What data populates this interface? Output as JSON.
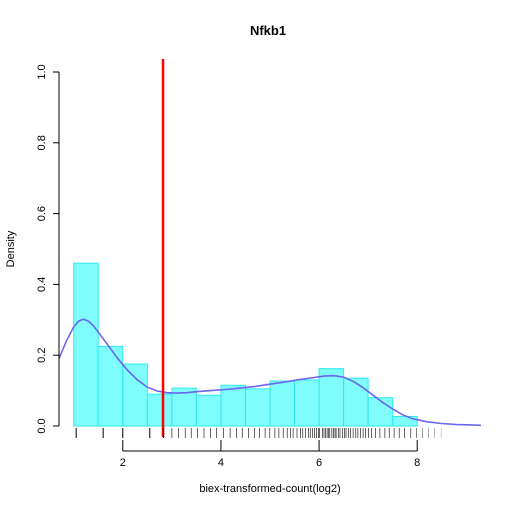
{
  "chart_data": {
    "type": "histogram",
    "title": "Nfkb1",
    "xlabel": "biex-transformed-count(log2)",
    "ylabel": "Density",
    "xlim": [
      0.7,
      9.3
    ],
    "ylim": [
      0,
      1.0
    ],
    "x_ticks": [
      2,
      4,
      6,
      8
    ],
    "y_ticks": [
      0.0,
      0.2,
      0.4,
      0.6,
      0.8,
      1.0
    ],
    "x_tick_labels": [
      "2",
      "4",
      "6",
      "8"
    ],
    "y_tick_labels": [
      "0.0",
      "0.2",
      "0.4",
      "0.6",
      "0.8",
      "1.0"
    ],
    "bins": [
      {
        "x0": 1.0,
        "x1": 1.5,
        "density": 0.46
      },
      {
        "x0": 1.5,
        "x1": 2.0,
        "density": 0.225
      },
      {
        "x0": 2.0,
        "x1": 2.5,
        "density": 0.175
      },
      {
        "x0": 2.5,
        "x1": 3.0,
        "density": 0.09
      },
      {
        "x0": 3.0,
        "x1": 3.5,
        "density": 0.107
      },
      {
        "x0": 3.5,
        "x1": 4.0,
        "density": 0.087
      },
      {
        "x0": 4.0,
        "x1": 4.5,
        "density": 0.115
      },
      {
        "x0": 4.5,
        "x1": 5.0,
        "density": 0.105
      },
      {
        "x0": 5.0,
        "x1": 5.5,
        "density": 0.127
      },
      {
        "x0": 5.5,
        "x1": 6.0,
        "density": 0.13
      },
      {
        "x0": 6.0,
        "x1": 6.5,
        "density": 0.162
      },
      {
        "x0": 6.5,
        "x1": 7.0,
        "density": 0.135
      },
      {
        "x0": 7.0,
        "x1": 7.5,
        "density": 0.08
      },
      {
        "x0": 7.5,
        "x1": 8.0,
        "density": 0.027
      }
    ],
    "density_curve": {
      "x": [
        0.7,
        0.85,
        1.0,
        1.1,
        1.2,
        1.3,
        1.4,
        1.5,
        1.7,
        1.9,
        2.1,
        2.3,
        2.5,
        2.7,
        2.9,
        3.1,
        3.3,
        3.5,
        3.8,
        4.1,
        4.4,
        4.7,
        5.0,
        5.3,
        5.6,
        5.9,
        6.1,
        6.3,
        6.5,
        6.7,
        6.9,
        7.1,
        7.3,
        7.5,
        7.7,
        7.9,
        8.2,
        8.5,
        8.8,
        9.1,
        9.3
      ],
      "y": [
        0.19,
        0.24,
        0.28,
        0.296,
        0.302,
        0.296,
        0.284,
        0.265,
        0.228,
        0.19,
        0.157,
        0.13,
        0.11,
        0.099,
        0.094,
        0.093,
        0.094,
        0.097,
        0.1,
        0.103,
        0.107,
        0.112,
        0.118,
        0.124,
        0.131,
        0.137,
        0.141,
        0.142,
        0.138,
        0.126,
        0.108,
        0.087,
        0.066,
        0.048,
        0.032,
        0.021,
        0.012,
        0.007,
        0.004,
        0.003,
        0.002
      ]
    },
    "threshold_x": 2.82,
    "rug": {
      "dense_start": 3.0,
      "dense_end": 8.6,
      "sparse": [
        1.05,
        1.6,
        2.0,
        2.55,
        2.83
      ]
    },
    "colors": {
      "bar_fill": "#7ffcfc",
      "bar_stroke": "#33e8f0",
      "curve": "#6b66ef",
      "threshold": "#ff0000",
      "axis": "#000000"
    },
    "grid": false,
    "legend": "none"
  }
}
